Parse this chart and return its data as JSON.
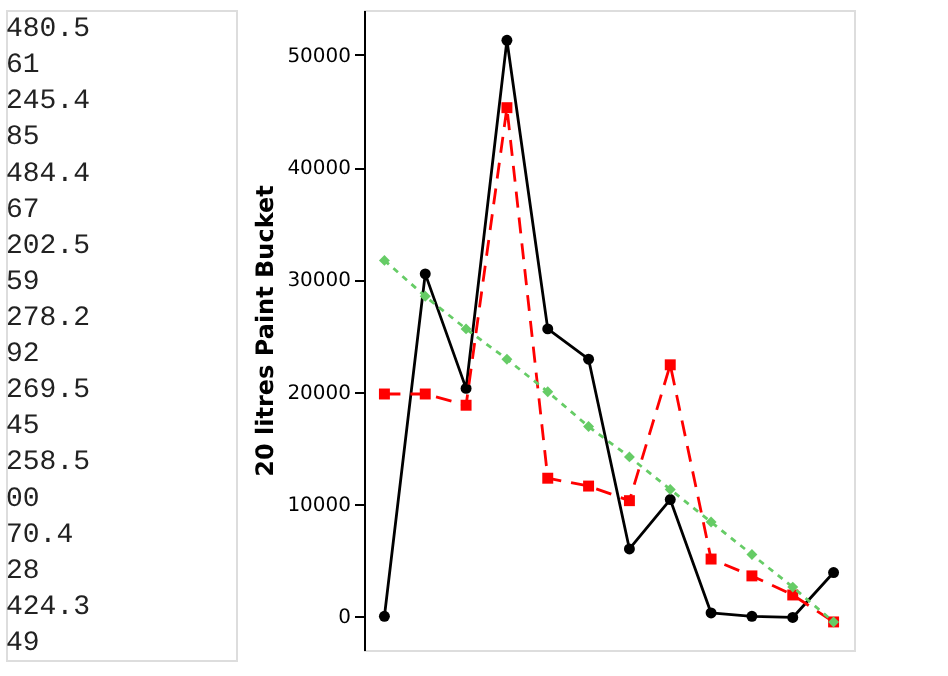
{
  "chart_data": {
    "type": "line",
    "ylabel": "20 litres Paint Bucket",
    "categories": [
      null,
      null,
      null,
      null,
      null,
      null,
      null,
      null,
      null,
      null,
      null,
      null
    ],
    "series": [
      {
        "color": "#000000",
        "marker": "circle",
        "line_style": "solid",
        "values": [
          0,
          30500,
          20300,
          51300,
          25600,
          22900,
          6000,
          10400,
          300,
          0,
          -100,
          3900
        ]
      },
      {
        "color": "#ff0000",
        "marker": "square",
        "line_style": "dashed",
        "values": [
          19800,
          19800,
          18800,
          45300,
          12300,
          11600,
          10300,
          22400,
          5100,
          3600,
          1900,
          -500
        ]
      },
      {
        "color": "#66cc66",
        "marker": "diamond",
        "line_style": "dotted",
        "values": [
          31700,
          28500,
          25600,
          22900,
          20000,
          16900,
          14200,
          11300,
          8400,
          5500,
          2600,
          -500
        ]
      }
    ],
    "ylim": [
      -3000,
      54000
    ],
    "yticks": [
      0,
      10000,
      20000,
      30000,
      40000,
      50000
    ],
    "tick_labels": "y",
    "grid": false,
    "annotations": [
      "480.5",
      "61",
      "245.4",
      "85",
      "484.4",
      "67",
      "202.5",
      "59",
      "278.2",
      "92",
      "269.5",
      "45",
      "258.5",
      "00",
      "70.4",
      "28",
      "424.3",
      "49"
    ]
  }
}
